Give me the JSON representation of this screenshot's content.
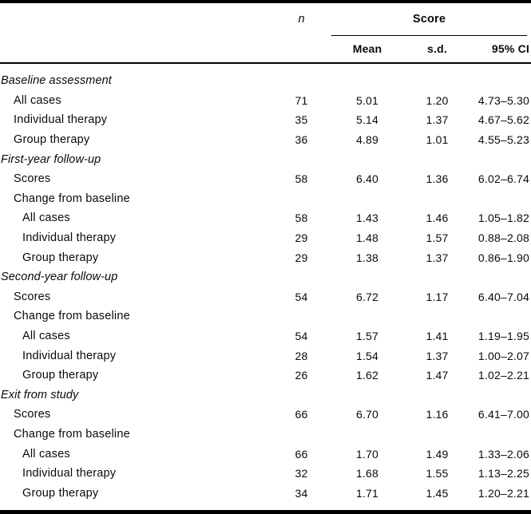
{
  "table": {
    "columns": {
      "n": "n",
      "score": "Score",
      "mean": "Mean",
      "sd": "s.d.",
      "ci": "95% CI"
    },
    "rows": [
      {
        "label": "Baseline assessment",
        "level": "section",
        "n": "",
        "mean": "",
        "sd": "",
        "ci": ""
      },
      {
        "label": "All cases",
        "level": "item",
        "n": "71",
        "mean": "5.01",
        "sd": "1.20",
        "ci": "4.73–5.30"
      },
      {
        "label": "Individual therapy",
        "level": "item",
        "n": "35",
        "mean": "5.14",
        "sd": "1.37",
        "ci": "4.67–5.62"
      },
      {
        "label": "Group therapy",
        "level": "item",
        "n": "36",
        "mean": "4.89",
        "sd": "1.01",
        "ci": "4.55–5.23"
      },
      {
        "label": "First-year follow-up",
        "level": "section",
        "n": "",
        "mean": "",
        "sd": "",
        "ci": ""
      },
      {
        "label": "Scores",
        "level": "item",
        "n": "58",
        "mean": "6.40",
        "sd": "1.36",
        "ci": "6.02–6.74"
      },
      {
        "label": "Change from baseline",
        "level": "item",
        "n": "",
        "mean": "",
        "sd": "",
        "ci": ""
      },
      {
        "label": "All cases",
        "level": "subitem",
        "n": "58",
        "mean": "1.43",
        "sd": "1.46",
        "ci": "1.05–1.82"
      },
      {
        "label": "Individual therapy",
        "level": "subitem",
        "n": "29",
        "mean": "1.48",
        "sd": "1.57",
        "ci": "0.88–2.08"
      },
      {
        "label": "Group therapy",
        "level": "subitem",
        "n": "29",
        "mean": "1.38",
        "sd": "1.37",
        "ci": "0.86–1.90"
      },
      {
        "label": "Second-year follow-up",
        "level": "section",
        "n": "",
        "mean": "",
        "sd": "",
        "ci": ""
      },
      {
        "label": "Scores",
        "level": "item",
        "n": "54",
        "mean": "6.72",
        "sd": "1.17",
        "ci": "6.40–7.04"
      },
      {
        "label": "Change from baseline",
        "level": "item",
        "n": "",
        "mean": "",
        "sd": "",
        "ci": ""
      },
      {
        "label": "All cases",
        "level": "subitem",
        "n": "54",
        "mean": "1.57",
        "sd": "1.41",
        "ci": "1.19–1.95"
      },
      {
        "label": "Individual therapy",
        "level": "subitem",
        "n": "28",
        "mean": "1.54",
        "sd": "1.37",
        "ci": "1.00–2.07"
      },
      {
        "label": "Group therapy",
        "level": "subitem",
        "n": "26",
        "mean": "1.62",
        "sd": "1.47",
        "ci": "1.02–2.21"
      },
      {
        "label": "Exit from study",
        "level": "section",
        "n": "",
        "mean": "",
        "sd": "",
        "ci": ""
      },
      {
        "label": "Scores",
        "level": "item",
        "n": "66",
        "mean": "6.70",
        "sd": "1.16",
        "ci": "6.41–7.00"
      },
      {
        "label": "Change from baseline",
        "level": "item",
        "n": "",
        "mean": "",
        "sd": "",
        "ci": ""
      },
      {
        "label": "All cases",
        "level": "subitem",
        "n": "66",
        "mean": "1.70",
        "sd": "1.49",
        "ci": "1.33–2.06"
      },
      {
        "label": "Individual therapy",
        "level": "subitem",
        "n": "32",
        "mean": "1.68",
        "sd": "1.55",
        "ci": "1.13–2.25"
      },
      {
        "label": "Group therapy",
        "level": "subitem",
        "n": "34",
        "mean": "1.71",
        "sd": "1.45",
        "ci": "1.20–2.21"
      }
    ]
  }
}
